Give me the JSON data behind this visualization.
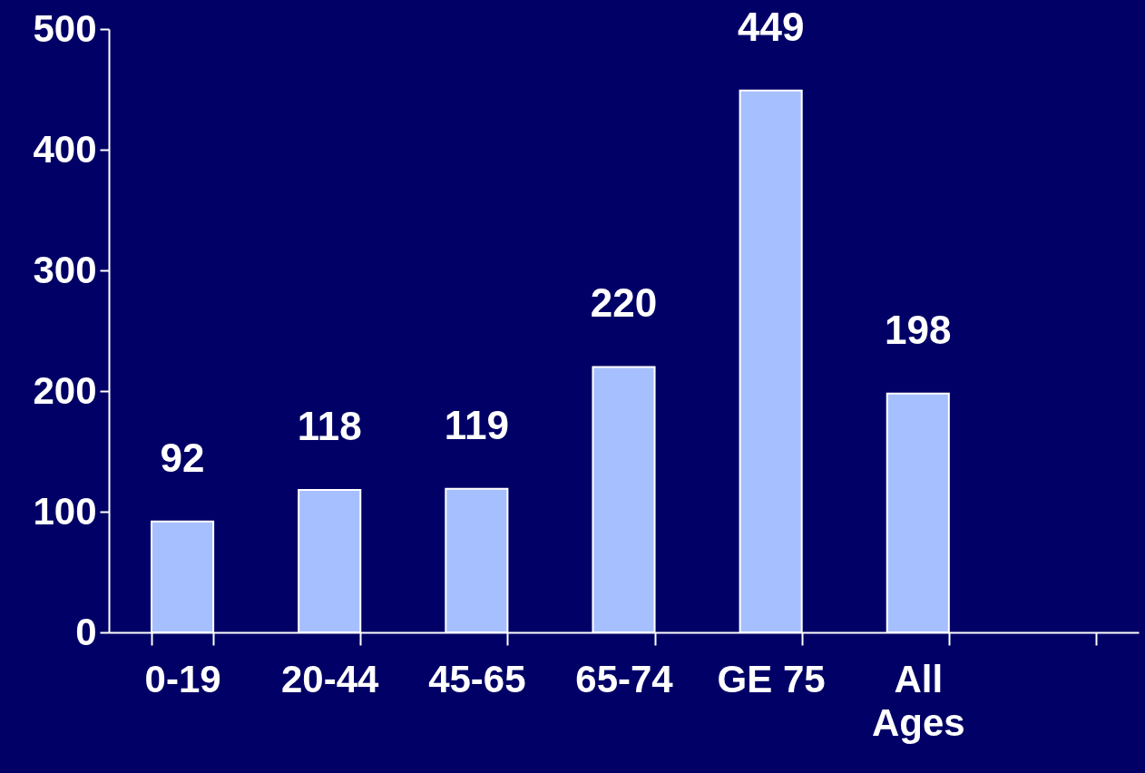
{
  "chart_data": {
    "type": "bar",
    "categories": [
      "0-19",
      "20-44",
      "45-65",
      "65-74",
      "GE 75",
      "All Ages",
      null
    ],
    "values": [
      92,
      118,
      119,
      220,
      449,
      198,
      null
    ],
    "color": "#a6bfff",
    "ylim": [
      0,
      500
    ],
    "yticks": [
      0,
      100,
      200,
      300,
      400,
      500
    ],
    "grid": false,
    "data_labels": true
  }
}
